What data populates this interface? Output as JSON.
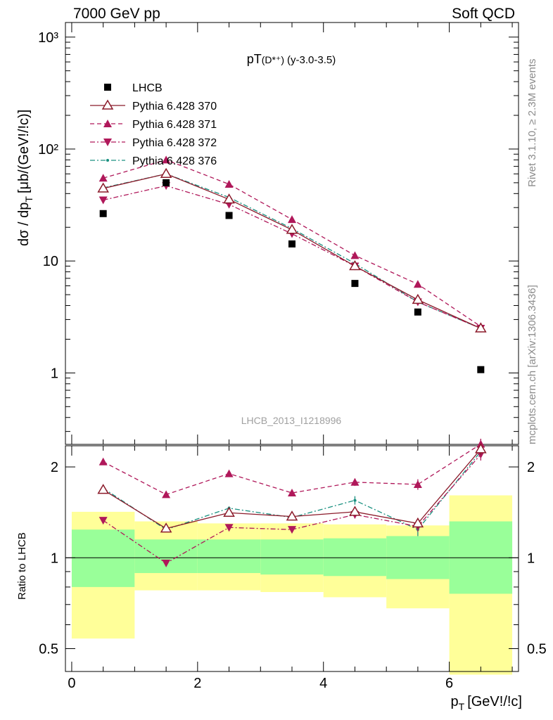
{
  "header": {
    "left": "7000 GeV pp",
    "right": "Soft QCD"
  },
  "side_labels": {
    "rivet": "Rivet 3.1.10, ≥ 2.3M events",
    "mcplots": "mcplots.cern.ch [arXiv:1306.3436]"
  },
  "plot_title": {
    "main": "pT",
    "super": "(D*⁺)",
    "range": "(y-3.0-3.5)"
  },
  "watermark": "LHCB_2013_I1218996",
  "chart_data": [
    {
      "type": "scatter",
      "panel": "main",
      "ylabel": "dσ / dp",
      "ylabel_sub": "T",
      "ylabel_tail": "[μb/(GeV!/!c)]",
      "yscale": "log",
      "xlim": [
        -0.1,
        7.1
      ],
      "ylim": [
        0.23,
        1350
      ],
      "y_tick_labels": [
        "1",
        "10",
        "10²",
        "10³"
      ],
      "x": [
        0.5,
        1.5,
        2.5,
        3.5,
        4.5,
        5.5,
        6.5
      ],
      "series": [
        {
          "name": "LHCB",
          "color": "#000000",
          "marker": "square",
          "line": "none",
          "values": [
            26.5,
            50,
            25.5,
            14.2,
            6.3,
            3.5,
            1.07
          ]
        },
        {
          "name": "Pythia 6.428 370",
          "color": "#8b1a2a",
          "marker": "triangle-open",
          "line": "solid",
          "values": [
            44.5,
            60,
            35.5,
            19,
            9.0,
            4.5,
            2.5
          ]
        },
        {
          "name": "Pythia 6.428 371",
          "color": "#b0185a",
          "marker": "triangle-up",
          "line": "dashed",
          "values": [
            55,
            80,
            48.5,
            23.5,
            11.2,
            6.2,
            2.6
          ]
        },
        {
          "name": "Pythia 6.428 372",
          "color": "#b0185a",
          "marker": "triangle-down",
          "line": "dashdot",
          "values": [
            35,
            47,
            32,
            17.5,
            9.0,
            4.3,
            2.5
          ]
        },
        {
          "name": "Pythia 6.428 376",
          "color": "#1a9080",
          "marker": "dot",
          "line": "dashdot",
          "values": [
            45,
            60,
            37,
            19.5,
            9.5,
            4.3,
            2.5
          ]
        }
      ]
    },
    {
      "type": "scatter",
      "panel": "ratio",
      "ylabel": "Ratio to LHCB",
      "xlabel": "p",
      "xlabel_sub": "T",
      "xlabel_tail": "[GeV!/!c]",
      "yscale": "log",
      "xlim": [
        -0.1,
        7.1
      ],
      "ylim": [
        0.42,
        2.35
      ],
      "x_ticks": [
        0,
        2,
        4,
        6
      ],
      "y_ticks": [
        0.5,
        1,
        2
      ],
      "reference_line": 1,
      "bands": {
        "x_edges": [
          0,
          1,
          2,
          3,
          4,
          5,
          6,
          7
        ],
        "yellow_color": "#ffff99",
        "green_color": "#99ff99",
        "yellow_low": [
          0.54,
          0.78,
          0.78,
          0.77,
          0.74,
          0.68,
          0.41
        ],
        "yellow_high": [
          1.42,
          1.32,
          1.3,
          1.3,
          1.29,
          1.28,
          1.61
        ],
        "green_low": [
          0.8,
          0.89,
          0.89,
          0.88,
          0.87,
          0.85,
          0.76
        ],
        "green_high": [
          1.24,
          1.15,
          1.15,
          1.15,
          1.16,
          1.18,
          1.32
        ]
      },
      "x": [
        0.5,
        1.5,
        2.5,
        3.5,
        4.5,
        5.5,
        6.5
      ],
      "series": [
        {
          "name": "Pythia 6.428 370",
          "color": "#8b1a2a",
          "marker": "triangle-open",
          "line": "solid",
          "values": [
            1.68,
            1.25,
            1.41,
            1.37,
            1.42,
            1.3,
            2.29
          ],
          "errors": [
            0.03,
            0.02,
            0.02,
            0.02,
            0.04,
            0.05,
            0.1
          ]
        },
        {
          "name": "Pythia 6.428 371",
          "color": "#b0185a",
          "marker": "triangle-up",
          "line": "dashed",
          "values": [
            2.08,
            1.62,
            1.9,
            1.64,
            1.78,
            1.75,
            2.38
          ],
          "errors": [
            0.02,
            0.02,
            0.02,
            0.02,
            0.05,
            0.07,
            0.1
          ]
        },
        {
          "name": "Pythia 6.428 372",
          "color": "#b0185a",
          "marker": "triangle-down",
          "line": "dashdot",
          "values": [
            1.33,
            0.96,
            1.26,
            1.24,
            1.39,
            1.27,
            2.2
          ],
          "errors": [
            0.02,
            0.02,
            0.02,
            0.02,
            0.04,
            0.05,
            0.1
          ]
        },
        {
          "name": "Pythia 6.428 376",
          "color": "#1a9080",
          "marker": "dot",
          "line": "dashdot",
          "values": [
            1.7,
            1.24,
            1.46,
            1.36,
            1.55,
            1.24,
            2.25
          ],
          "errors": [
            0.03,
            0.02,
            0.02,
            0.02,
            0.05,
            0.06,
            0.1
          ]
        }
      ]
    }
  ]
}
